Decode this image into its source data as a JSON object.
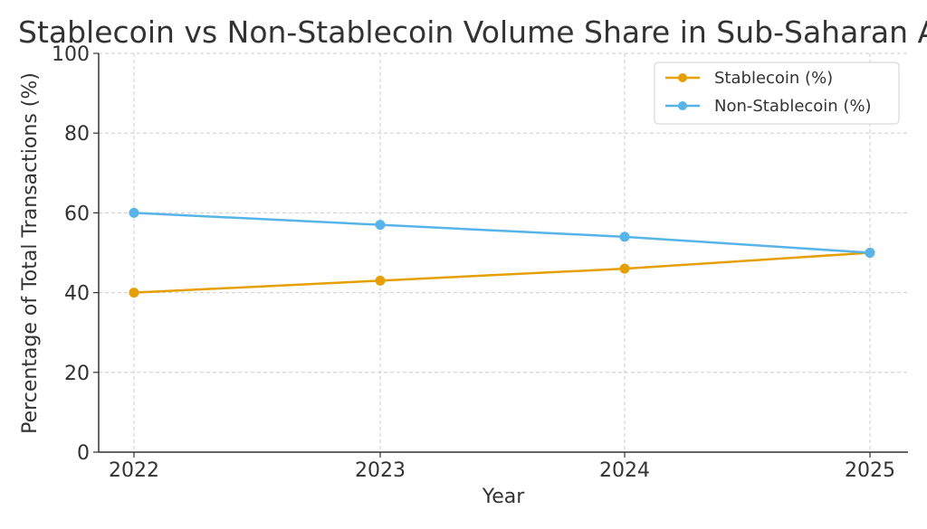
{
  "chart_data": {
    "type": "line",
    "title": "Stablecoin vs Non-Stablecoin Volume Share in Sub-Saharan Africa",
    "xlabel": "Year",
    "ylabel": "Percentage of Total Transactions (%)",
    "categories": [
      "2022",
      "2023",
      "2024",
      "2025"
    ],
    "ylim": [
      0,
      100
    ],
    "yticks": [
      0,
      20,
      40,
      60,
      80,
      100
    ],
    "grid": true,
    "legend_position": "top-right",
    "series": [
      {
        "name": "Stablecoin (%)",
        "values": [
          40,
          43,
          46,
          50
        ],
        "color": "#E69F00"
      },
      {
        "name": "Non-Stablecoin (%)",
        "values": [
          60,
          57,
          54,
          50
        ],
        "color": "#56B4E9"
      }
    ]
  }
}
